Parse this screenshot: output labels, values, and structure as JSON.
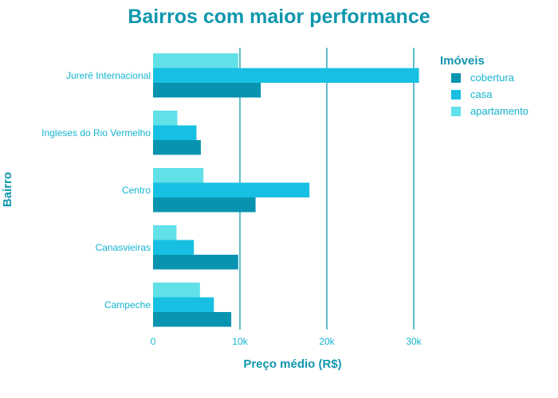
{
  "chart_data": {
    "type": "bar",
    "orientation": "horizontal",
    "title": "Bairros com maior performance",
    "xlabel": "Preço médio (R$)",
    "ylabel": "Bairro",
    "xlim": [
      0,
      32000
    ],
    "x_ticks": [
      0,
      10000,
      20000,
      30000
    ],
    "x_tick_labels": [
      "0",
      "10k",
      "20k",
      "30k"
    ],
    "grid": "vertical lines at ticks",
    "legend_title": "Imóveis",
    "legend_position": "top-right",
    "categories": [
      "Jurerê Internacional",
      "Ingleses do Rio Vermelho",
      "Centro",
      "Canasvieiras",
      "Campeche"
    ],
    "series": [
      {
        "name": "cobertura",
        "color": "#0894b0",
        "values": [
          12400,
          5500,
          11800,
          9800,
          9000
        ]
      },
      {
        "name": "casa",
        "color": "#17c0e2",
        "values": [
          30600,
          5000,
          18000,
          4700,
          7000
        ]
      },
      {
        "name": "apartamento",
        "color": "#62e0e8",
        "values": [
          9800,
          2800,
          5800,
          2700,
          5400
        ]
      }
    ]
  }
}
